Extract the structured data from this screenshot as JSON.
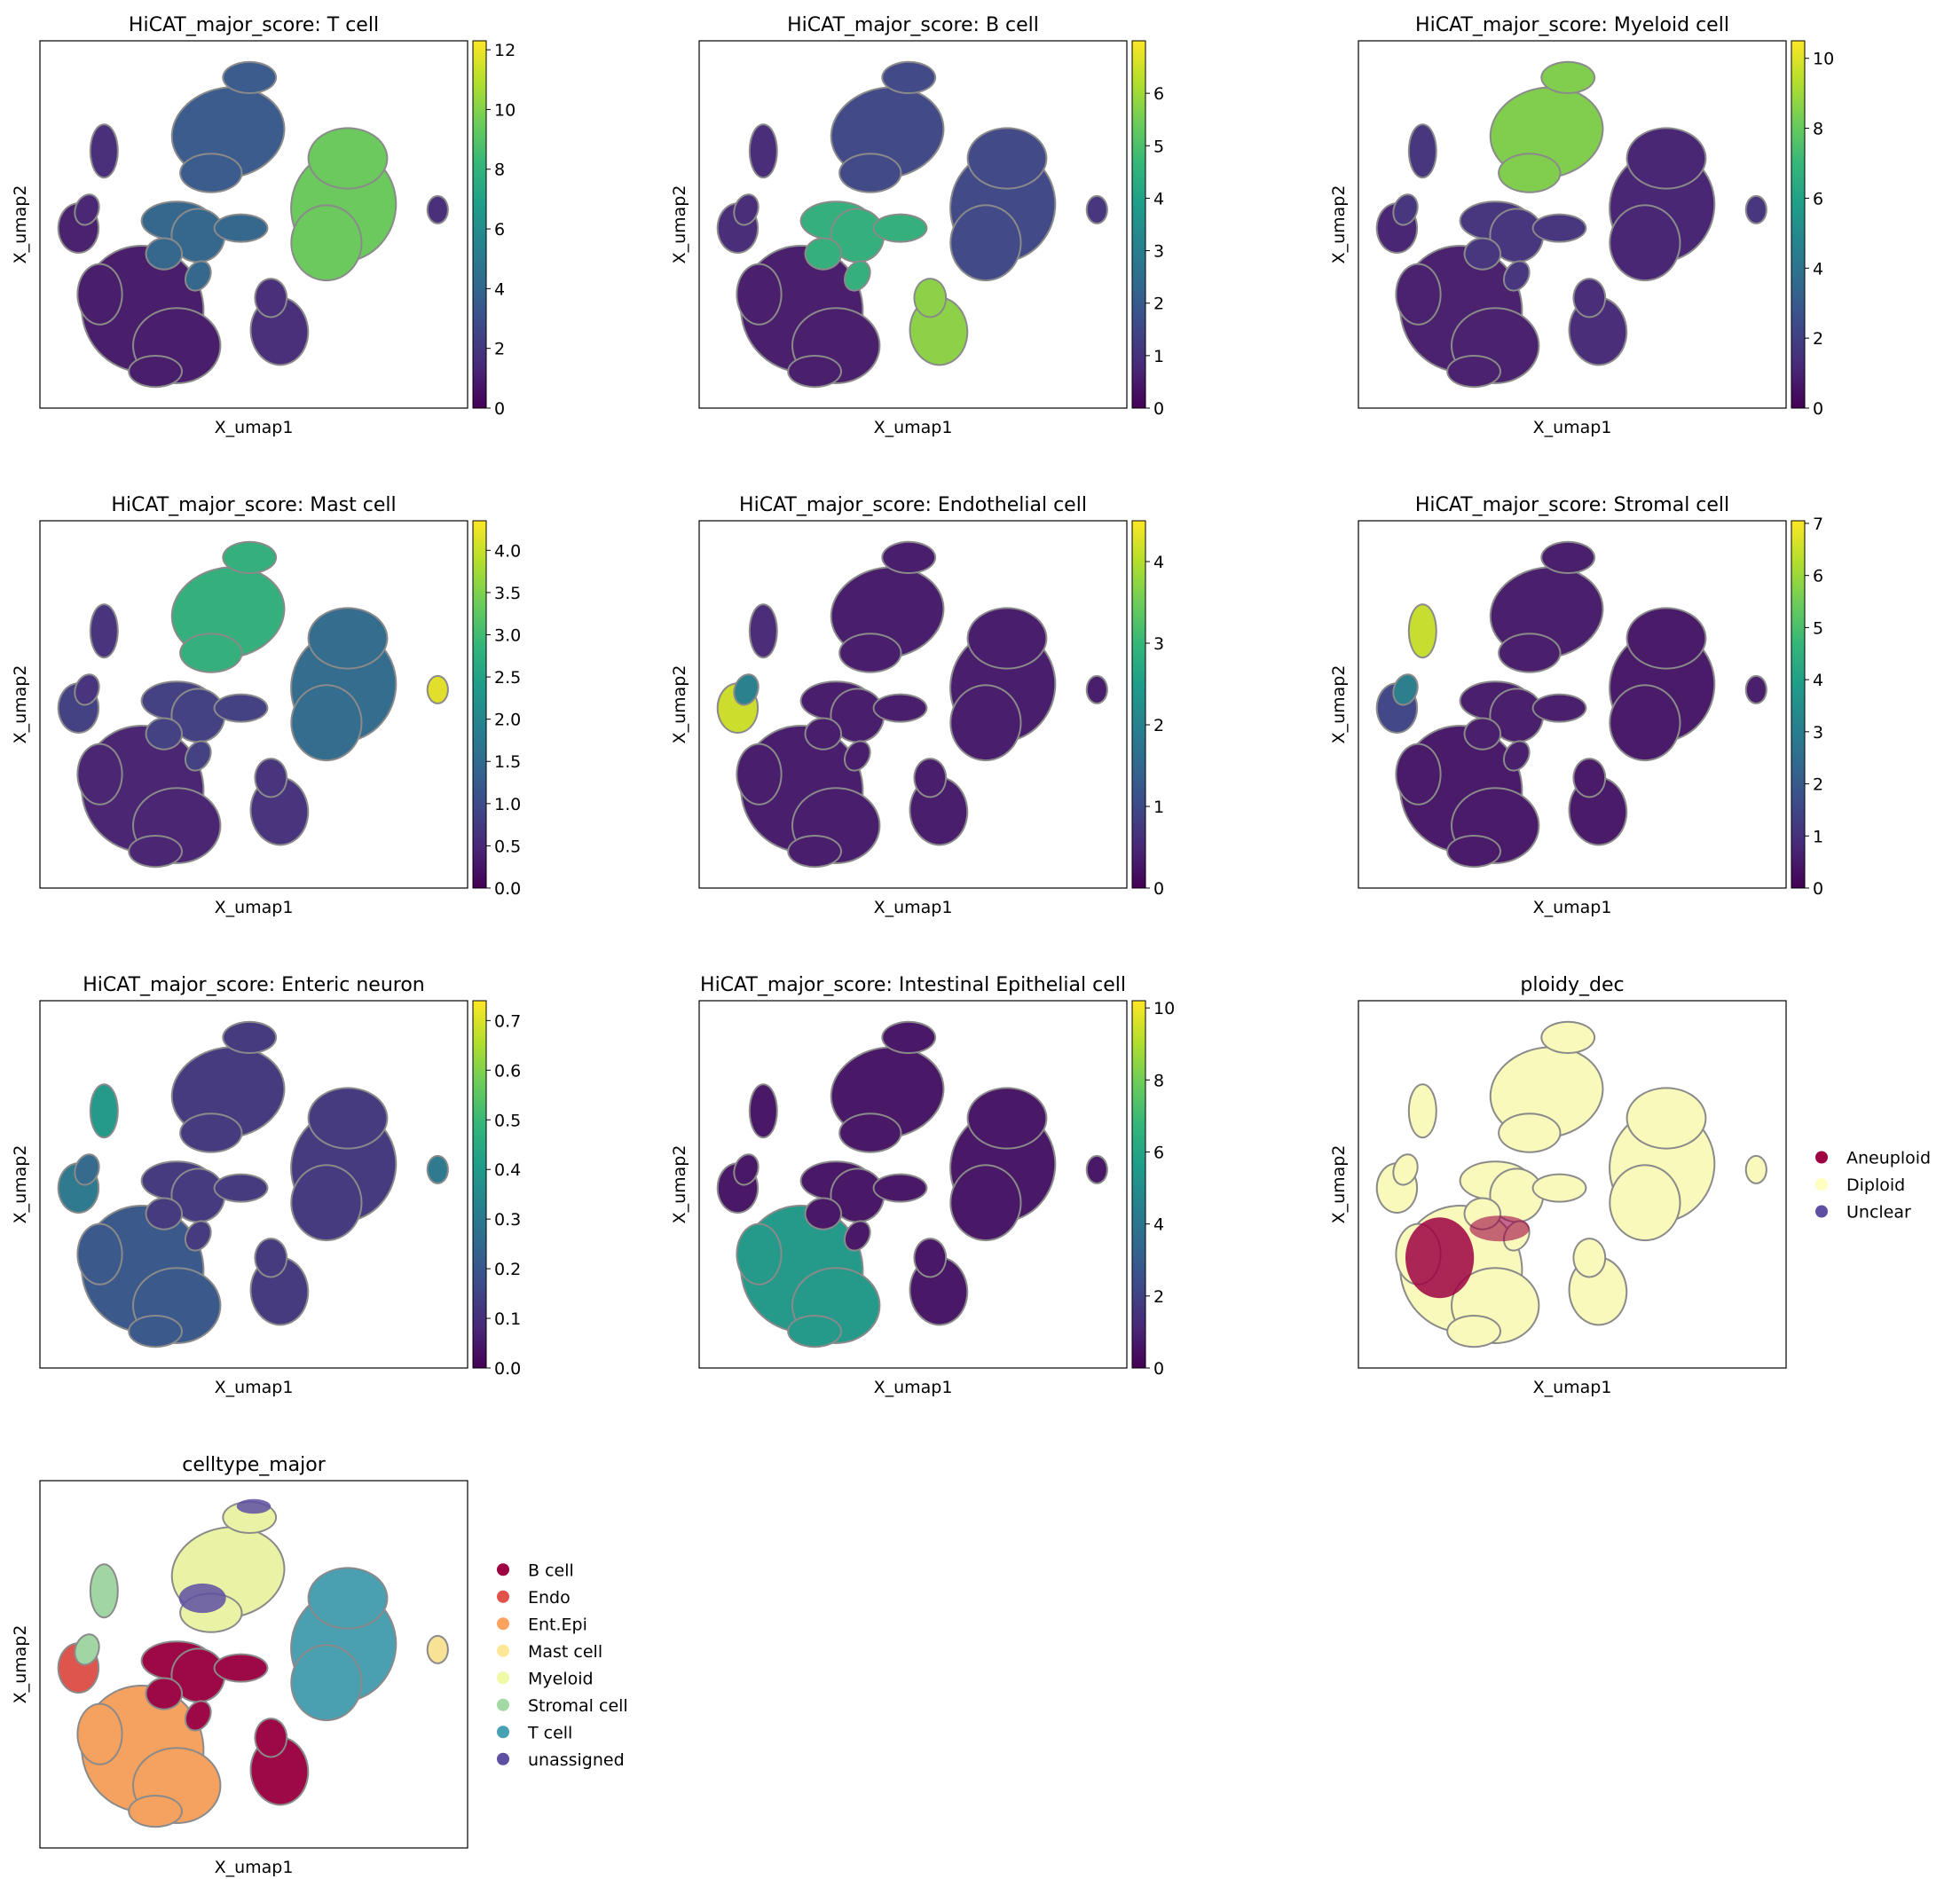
{
  "chart_data": [
    {
      "type": "scatter",
      "embedding": "umap",
      "title": "HiCAT_major_score: T cell",
      "xlabel": "X_umap1",
      "ylabel": "X_umap2",
      "colorbar": {
        "cmap": "viridis",
        "range": [
          0,
          12.3
        ],
        "ticks": [
          "0",
          "2",
          "4",
          "6",
          "8",
          "10",
          "12"
        ]
      },
      "cluster_values": {
        "cluster_top": 3.5,
        "cluster_left1": 1.5,
        "cluster_left2": 1.2,
        "cluster_left3": 1.0,
        "cluster_mid": 4.0,
        "cluster_right": 9.5,
        "cluster_epi": 0.8,
        "cluster_b": 1.5,
        "cluster_mast": 1.5
      }
    },
    {
      "type": "scatter",
      "embedding": "umap",
      "title": "HiCAT_major_score: B cell",
      "xlabel": "X_umap1",
      "ylabel": "X_umap2",
      "colorbar": {
        "cmap": "viridis",
        "range": [
          0,
          7.0
        ],
        "ticks": [
          "0",
          "1",
          "2",
          "3",
          "4",
          "5",
          "6"
        ]
      },
      "cluster_values": {
        "cluster_top": 1.5,
        "cluster_left1": 0.8,
        "cluster_left2": 0.8,
        "cluster_left3": 0.8,
        "cluster_mid": 4.5,
        "cluster_right": 1.5,
        "cluster_epi": 0.5,
        "cluster_b": 5.8,
        "cluster_mast": 1.0
      }
    },
    {
      "type": "scatter",
      "embedding": "umap",
      "title": "HiCAT_major_score: Myeloid cell",
      "xlabel": "X_umap1",
      "ylabel": "X_umap2",
      "colorbar": {
        "cmap": "viridis",
        "range": [
          0,
          10.5
        ],
        "ticks": [
          "0",
          "2",
          "4",
          "6",
          "8",
          "10"
        ]
      },
      "cluster_values": {
        "cluster_top": 8.5,
        "cluster_left1": 1.5,
        "cluster_left2": 1.5,
        "cluster_left3": 1.0,
        "cluster_mid": 1.5,
        "cluster_right": 1.0,
        "cluster_epi": 0.8,
        "cluster_b": 1.2,
        "cluster_mast": 1.5
      }
    },
    {
      "type": "scatter",
      "embedding": "umap",
      "title": "HiCAT_major_score: Mast cell",
      "xlabel": "X_umap1",
      "ylabel": "X_umap2",
      "colorbar": {
        "cmap": "viridis",
        "range": [
          0,
          4.35
        ],
        "ticks": [
          "0.0",
          "0.5",
          "1.0",
          "1.5",
          "2.0",
          "2.5",
          "3.0",
          "3.5",
          "4.0"
        ]
      },
      "cluster_values": {
        "cluster_top": 2.8,
        "cluster_left1": 0.6,
        "cluster_left2": 0.6,
        "cluster_left3": 0.8,
        "cluster_mid": 0.8,
        "cluster_right": 1.5,
        "cluster_epi": 0.4,
        "cluster_b": 0.6,
        "cluster_mast": 4.2
      }
    },
    {
      "type": "scatter",
      "embedding": "umap",
      "title": "HiCAT_major_score: Endothelial cell",
      "xlabel": "X_umap1",
      "ylabel": "X_umap2",
      "colorbar": {
        "cmap": "viridis",
        "range": [
          0,
          4.5
        ],
        "ticks": [
          "0",
          "1",
          "2",
          "3",
          "4"
        ]
      },
      "cluster_values": {
        "cluster_top": 0.3,
        "cluster_left1": 0.5,
        "cluster_left2": 2.0,
        "cluster_left3": 4.2,
        "cluster_mid": 0.3,
        "cluster_right": 0.3,
        "cluster_epi": 0.3,
        "cluster_b": 0.3,
        "cluster_mast": 0.3
      }
    },
    {
      "type": "scatter",
      "embedding": "umap",
      "title": "HiCAT_major_score: Stromal cell",
      "xlabel": "X_umap1",
      "ylabel": "X_umap2",
      "colorbar": {
        "cmap": "viridis",
        "range": [
          0,
          7.05
        ],
        "ticks": [
          "0",
          "1",
          "2",
          "3",
          "4",
          "5",
          "6",
          "7"
        ]
      },
      "cluster_values": {
        "cluster_top": 0.5,
        "cluster_left1": 6.5,
        "cluster_left2": 3.0,
        "cluster_left3": 1.5,
        "cluster_mid": 0.5,
        "cluster_right": 0.4,
        "cluster_epi": 0.4,
        "cluster_b": 0.4,
        "cluster_mast": 0.5
      }
    },
    {
      "type": "scatter",
      "embedding": "umap",
      "title": "HiCAT_major_score: Enteric neuron",
      "xlabel": "X_umap1",
      "ylabel": "X_umap2",
      "colorbar": {
        "cmap": "viridis",
        "range": [
          0,
          0.74
        ],
        "ticks": [
          "0.0",
          "0.1",
          "0.2",
          "0.3",
          "0.4",
          "0.5",
          "0.6",
          "0.7"
        ]
      },
      "cluster_values": {
        "cluster_top": 0.12,
        "cluster_left1": 0.4,
        "cluster_left2": 0.25,
        "cluster_left3": 0.3,
        "cluster_mid": 0.12,
        "cluster_right": 0.12,
        "cluster_epi": 0.2,
        "cluster_b": 0.12,
        "cluster_mast": 0.3
      }
    },
    {
      "type": "scatter",
      "embedding": "umap",
      "title": "HiCAT_major_score: Intestinal Epithelial cell",
      "xlabel": "X_umap1",
      "ylabel": "X_umap2",
      "colorbar": {
        "cmap": "viridis",
        "range": [
          0,
          10.2
        ],
        "ticks": [
          "0",
          "2",
          "4",
          "6",
          "8",
          "10"
        ]
      },
      "cluster_values": {
        "cluster_top": 0.5,
        "cluster_left1": 0.5,
        "cluster_left2": 0.5,
        "cluster_left3": 0.5,
        "cluster_mid": 0.5,
        "cluster_right": 0.5,
        "cluster_epi": 5.5,
        "cluster_b": 0.5,
        "cluster_mast": 0.5
      }
    },
    {
      "type": "scatter",
      "embedding": "umap",
      "title": "ploidy_dec",
      "xlabel": "X_umap1",
      "ylabel": "X_umap2",
      "legend": {
        "placement": "right",
        "entries": [
          {
            "name": "Aneuploid",
            "color": "#9e0142"
          },
          {
            "name": "Diploid",
            "color": "#ffffbf"
          },
          {
            "name": "Unclear",
            "color": "#5e4fa2"
          }
        ]
      },
      "cluster_categories": {
        "cluster_top": "Diploid",
        "cluster_left1": "Diploid",
        "cluster_left2": "Diploid",
        "cluster_left3": "Diploid",
        "cluster_mid": "Diploid",
        "cluster_right": "Diploid",
        "cluster_epi": "Diploid",
        "cluster_b": "Diploid",
        "cluster_mast": "Diploid",
        "aneuploid_region": "Aneuploid"
      }
    },
    {
      "type": "scatter",
      "embedding": "umap",
      "title": "celltype_major",
      "xlabel": "X_umap1",
      "ylabel": "X_umap2",
      "legend": {
        "placement": "right",
        "entries": [
          {
            "name": "B cell",
            "color": "#9e0142"
          },
          {
            "name": "Endo",
            "color": "#e1524a"
          },
          {
            "name": "Ent.Epi",
            "color": "#fba35e"
          },
          {
            "name": "Mast cell",
            "color": "#fee797"
          },
          {
            "name": "Myeloid",
            "color": "#eff9a6"
          },
          {
            "name": "Stromal cell",
            "color": "#a2d9a4"
          },
          {
            "name": "T cell",
            "color": "#47a0b3"
          },
          {
            "name": "unassigned",
            "color": "#5e4fa2"
          }
        ]
      },
      "cluster_categories": {
        "cluster_top": "Myeloid",
        "cluster_left1": "Stromal cell",
        "cluster_left2": "Stromal cell",
        "cluster_left3": "Endo",
        "cluster_mid": "B cell",
        "cluster_right": "T cell",
        "cluster_epi": "Ent.Epi",
        "cluster_b": "B cell",
        "cluster_mast": "Mast cell",
        "unassigned_region": "unassigned"
      }
    }
  ]
}
